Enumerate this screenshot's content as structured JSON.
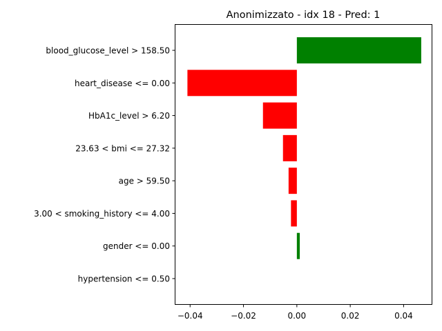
{
  "chart_data": {
    "type": "bar",
    "orientation": "horizontal",
    "title": "Anonimizzato - idx 18 - Pred: 1",
    "xlabel": "",
    "ylabel": "",
    "categories": [
      "blood_glucose_level > 158.50",
      "heart_disease <= 0.00",
      "HbA1c_level > 6.20",
      "23.63 < bmi <= 27.32",
      "age > 59.50",
      "3.00 < smoking_history <= 4.00",
      "gender <= 0.00",
      "hypertension <= 0.50"
    ],
    "values": [
      0.0466,
      -0.041,
      -0.0127,
      -0.0052,
      -0.0031,
      -0.0022,
      0.0011,
      0.0
    ],
    "bar_colors": [
      "#008000",
      "#ff0000",
      "#ff0000",
      "#ff0000",
      "#ff0000",
      "#ff0000",
      "#008000",
      "#ff0000"
    ],
    "positive_color": "#008000",
    "negative_color": "#ff0000",
    "xlim": [
      -0.0455,
      0.0505
    ],
    "xticks": [
      -0.04,
      -0.02,
      0.0,
      0.02,
      0.04
    ],
    "xtick_labels": [
      "−0.04",
      "−0.02",
      "0.00",
      "0.02",
      "0.04"
    ],
    "grid": false,
    "legend": false
  }
}
